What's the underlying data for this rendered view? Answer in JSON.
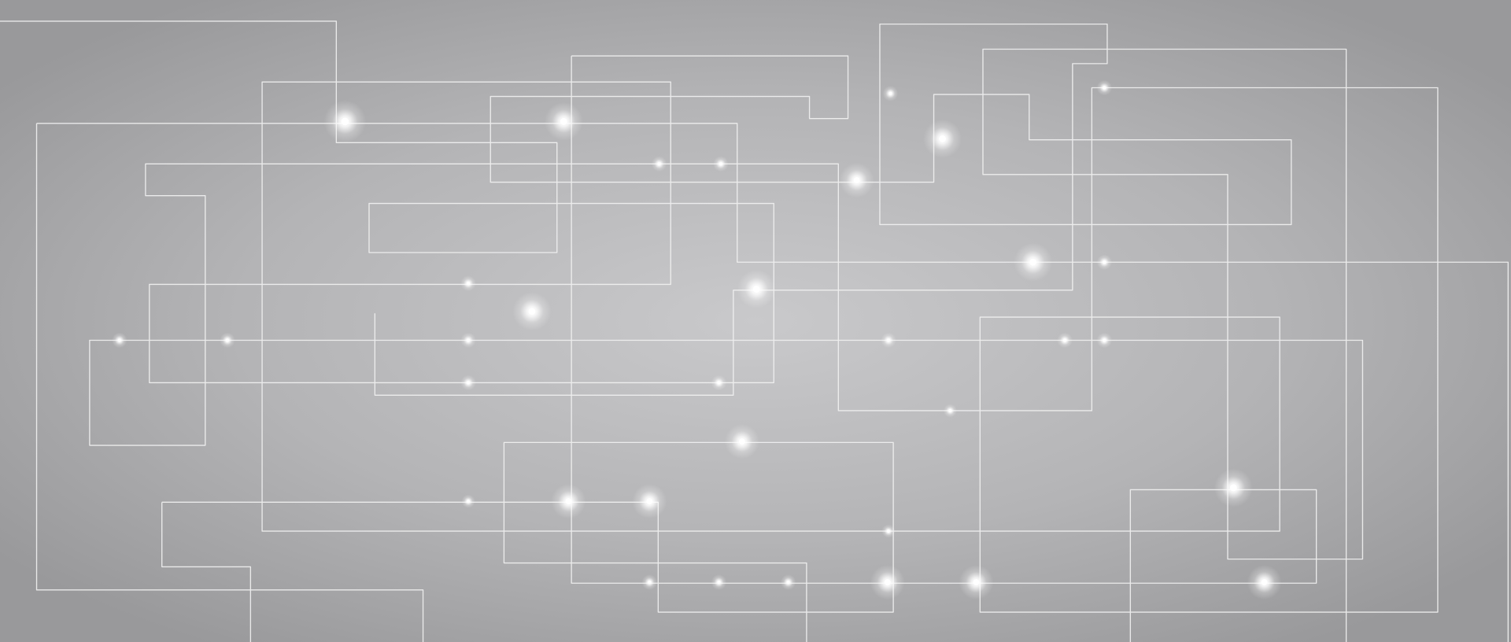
{
  "scene": {
    "subject": "abstract-circuit-lines-background",
    "palette": {
      "center": "#c9c9cb",
      "mid": "#b4b4b6",
      "edge": "#99999b",
      "line": "#f2f2f2",
      "glow": "#ffffff"
    }
  }
}
